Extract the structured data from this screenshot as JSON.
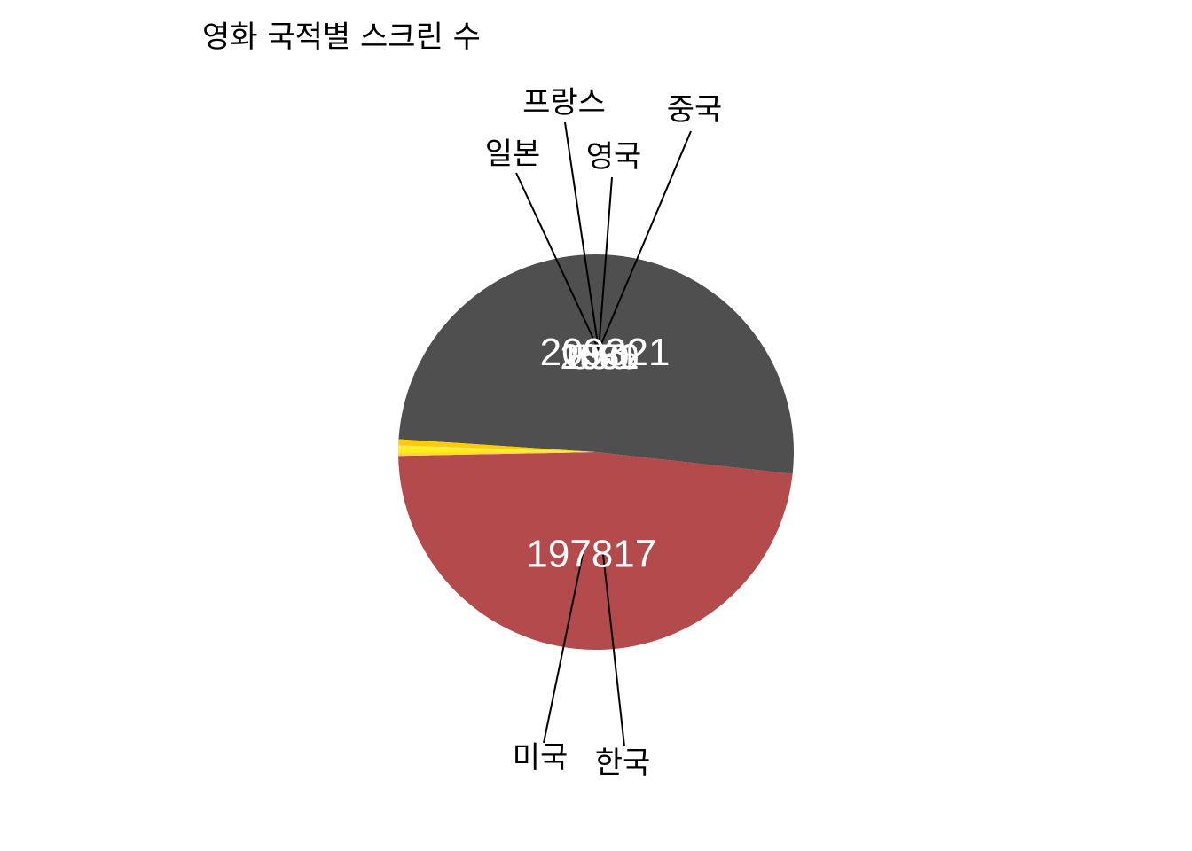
{
  "chart_data": {
    "type": "pie",
    "title": "영화 국적별 스크린 수",
    "categories": [
      "한국",
      "미국",
      "일본",
      "프랑스",
      "영국",
      "중국"
    ],
    "values": [
      197817,
      209321,
      2061,
      850,
      1556,
      1080
    ],
    "colors": [
      "#b34a4c",
      "#4f4f4f",
      "#ffcc00",
      "#ffe566",
      "#fff200",
      "#ffd24a"
    ],
    "start_angle_deg": 181.1,
    "direction": "counterclockwise",
    "legend": "none"
  }
}
